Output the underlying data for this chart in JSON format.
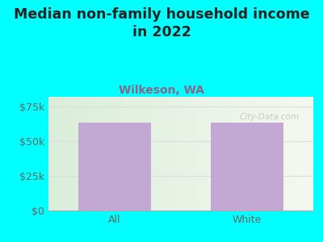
{
  "title": "Median non-family household income\nin 2022",
  "subtitle": "Wilkeson, WA",
  "categories": [
    "All",
    "White"
  ],
  "values": [
    63500,
    63500
  ],
  "bar_color": "#C4A8D4",
  "background_color": "#00FFFF",
  "ylabel_ticks": [
    0,
    25000,
    50000,
    75000
  ],
  "ylabel_labels": [
    "$0",
    "$25k",
    "$50k",
    "$75k"
  ],
  "ylim": [
    0,
    82000
  ],
  "title_fontsize": 12.5,
  "subtitle_fontsize": 10,
  "tick_fontsize": 9,
  "title_color": "#222222",
  "subtitle_color": "#886688",
  "tick_color": "#666666",
  "watermark": "City-Data.com",
  "watermark_color": "#bbbbbb",
  "grid_color": "#dddddd",
  "plot_grad_left": "#daeeda",
  "plot_grad_right": "#f5f5f0"
}
